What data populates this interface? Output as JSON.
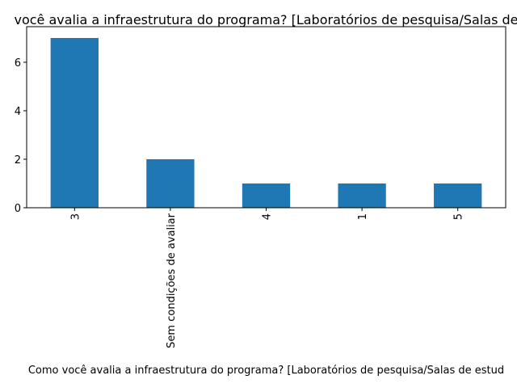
{
  "chart_data": {
    "type": "bar",
    "title": "você avalia a infraestrutura do programa? [Laboratórios de pesquisa/Salas de",
    "x_label": "Como você avalia a infraestrutura do programa? [Laboratórios de pesquisa/Salas de estud",
    "categories": [
      "3",
      "Sem condições de avaliar",
      "4",
      "1",
      "5"
    ],
    "values": [
      7,
      2,
      1,
      1,
      1
    ],
    "color": "#1f77b4",
    "ylim": [
      0,
      7.35
    ],
    "yticks": [
      0,
      2,
      4,
      6
    ]
  }
}
